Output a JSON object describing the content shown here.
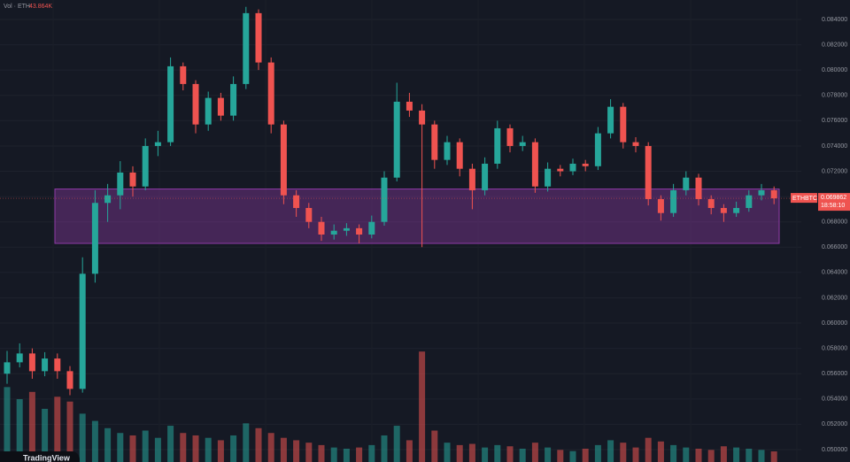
{
  "chart_data": {
    "type": "candlestick",
    "volume_legend": "Vol · ETH",
    "symbol": "ETHBTC",
    "countdown": "18:58:10",
    "logo": "TradingView",
    "up_color": "#26a69a",
    "down_color": "#ef5350",
    "zone": {
      "top": 0.0706,
      "bottom": 0.0663,
      "color": "#8e3aa6"
    },
    "ylim": [
      0.04902,
      0.08554
    ],
    "yticks": [
      {
        "value": 0.084,
        "label": "0.084000"
      },
      {
        "value": 0.082,
        "label": "0.082000"
      },
      {
        "value": 0.08,
        "label": "0.080000"
      },
      {
        "value": 0.078,
        "label": "0.078000"
      },
      {
        "value": 0.076,
        "label": "0.076000"
      },
      {
        "value": 0.074,
        "label": "0.074000"
      },
      {
        "value": 0.072,
        "label": "0.072000"
      },
      {
        "value": 0.07,
        "label": "0.070000"
      },
      {
        "value": 0.068,
        "label": "0.068000"
      },
      {
        "value": 0.066,
        "label": "0.066000"
      },
      {
        "value": 0.064,
        "label": "0.064000"
      },
      {
        "value": 0.062,
        "label": "0.062000"
      },
      {
        "value": 0.06,
        "label": "0.060000"
      },
      {
        "value": 0.058,
        "label": "0.058000"
      },
      {
        "value": 0.056,
        "label": "0.056000"
      },
      {
        "value": 0.054,
        "label": "0.054000"
      },
      {
        "value": 0.052,
        "label": "0.052000"
      },
      {
        "value": 0.05,
        "label": "0.050000"
      }
    ],
    "grid": true,
    "candles": [
      [
        0.056,
        0.0578,
        0.0552,
        0.0569
      ],
      [
        0.0569,
        0.0584,
        0.0565,
        0.0576
      ],
      [
        0.0576,
        0.058,
        0.0556,
        0.0562
      ],
      [
        0.0562,
        0.0577,
        0.0558,
        0.0572
      ],
      [
        0.0572,
        0.0576,
        0.0556,
        0.0562
      ],
      [
        0.0562,
        0.0566,
        0.0543,
        0.0548
      ],
      [
        0.0548,
        0.0652,
        0.0545,
        0.0639
      ],
      [
        0.0639,
        0.0705,
        0.0632,
        0.0695
      ],
      [
        0.0695,
        0.071,
        0.068,
        0.0701
      ],
      [
        0.0701,
        0.0728,
        0.069,
        0.0719
      ],
      [
        0.0719,
        0.0724,
        0.07,
        0.0708
      ],
      [
        0.0708,
        0.0746,
        0.0705,
        0.074
      ],
      [
        0.074,
        0.0752,
        0.0732,
        0.0743
      ],
      [
        0.0743,
        0.081,
        0.074,
        0.0803
      ],
      [
        0.0803,
        0.0806,
        0.0784,
        0.0789
      ],
      [
        0.0789,
        0.0792,
        0.075,
        0.0757
      ],
      [
        0.0757,
        0.0783,
        0.0752,
        0.0778
      ],
      [
        0.0778,
        0.0782,
        0.076,
        0.0764
      ],
      [
        0.0764,
        0.0795,
        0.076,
        0.0789
      ],
      [
        0.0789,
        0.085,
        0.0785,
        0.0845
      ],
      [
        0.0845,
        0.0848,
        0.08,
        0.0806
      ],
      [
        0.0806,
        0.081,
        0.075,
        0.0757
      ],
      [
        0.0757,
        0.076,
        0.0694,
        0.0701
      ],
      [
        0.0701,
        0.0705,
        0.0684,
        0.0691
      ],
      [
        0.0691,
        0.0695,
        0.0675,
        0.068
      ],
      [
        0.068,
        0.0684,
        0.0665,
        0.067
      ],
      [
        0.067,
        0.0678,
        0.0666,
        0.0673
      ],
      [
        0.0673,
        0.0679,
        0.0669,
        0.0675
      ],
      [
        0.0675,
        0.0678,
        0.0663,
        0.067
      ],
      [
        0.067,
        0.0685,
        0.0667,
        0.068
      ],
      [
        0.068,
        0.072,
        0.0677,
        0.0715
      ],
      [
        0.0715,
        0.079,
        0.0712,
        0.0775
      ],
      [
        0.0775,
        0.0782,
        0.0763,
        0.0768
      ],
      [
        0.0768,
        0.0773,
        0.066,
        0.0757
      ],
      [
        0.0757,
        0.076,
        0.0722,
        0.0729
      ],
      [
        0.0729,
        0.0748,
        0.0725,
        0.0743
      ],
      [
        0.0743,
        0.0746,
        0.0716,
        0.0722
      ],
      [
        0.0722,
        0.0726,
        0.069,
        0.0705
      ],
      [
        0.0705,
        0.0731,
        0.0701,
        0.0726
      ],
      [
        0.0726,
        0.076,
        0.0722,
        0.0754
      ],
      [
        0.0754,
        0.0757,
        0.0735,
        0.074
      ],
      [
        0.074,
        0.0748,
        0.0736,
        0.0743
      ],
      [
        0.0743,
        0.0746,
        0.0703,
        0.0708
      ],
      [
        0.0708,
        0.0727,
        0.0704,
        0.0722
      ],
      [
        0.0722,
        0.0725,
        0.0716,
        0.072
      ],
      [
        0.072,
        0.073,
        0.0717,
        0.0726
      ],
      [
        0.0726,
        0.0729,
        0.072,
        0.0724
      ],
      [
        0.0724,
        0.0755,
        0.0721,
        0.075
      ],
      [
        0.075,
        0.0777,
        0.0746,
        0.0771
      ],
      [
        0.0771,
        0.0774,
        0.0738,
        0.0743
      ],
      [
        0.0743,
        0.0747,
        0.0735,
        0.074
      ],
      [
        0.074,
        0.0743,
        0.0693,
        0.0698
      ],
      [
        0.0698,
        0.0701,
        0.0681,
        0.0687
      ],
      [
        0.0687,
        0.071,
        0.0684,
        0.0705
      ],
      [
        0.0705,
        0.072,
        0.0701,
        0.0715
      ],
      [
        0.0715,
        0.0718,
        0.0693,
        0.0698
      ],
      [
        0.0698,
        0.0701,
        0.0686,
        0.0691
      ],
      [
        0.0691,
        0.0694,
        0.068,
        0.0687
      ],
      [
        0.0687,
        0.0696,
        0.0684,
        0.0691
      ],
      [
        0.0691,
        0.0705,
        0.0688,
        0.0701
      ],
      [
        0.0701,
        0.071,
        0.0697,
        0.0705
      ],
      [
        0.0705,
        0.0708,
        0.0694,
        0.069862
      ]
    ],
    "volume": {
      "ylim": [
        0,
        520000
      ],
      "values": [
        310000,
        260000,
        290000,
        220000,
        270000,
        250000,
        200000,
        170000,
        140000,
        120000,
        110000,
        130000,
        100000,
        150000,
        120000,
        110000,
        100000,
        90000,
        110000,
        160000,
        140000,
        120000,
        100000,
        90000,
        80000,
        70000,
        60000,
        55000,
        60000,
        70000,
        110000,
        150000,
        90000,
        457000,
        130000,
        80000,
        70000,
        75000,
        60000,
        70000,
        65000,
        55000,
        80000,
        60000,
        50000,
        45000,
        55000,
        70000,
        90000,
        80000,
        60000,
        100000,
        85000,
        70000,
        60000,
        55000,
        50000,
        65000,
        60000,
        55000,
        50000,
        43864
      ],
      "last_label": "43.864K"
    }
  }
}
